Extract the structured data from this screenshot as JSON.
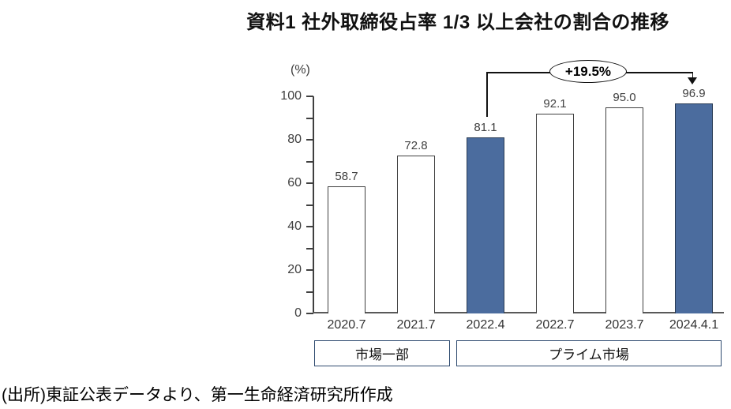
{
  "title": "資料1 社外取締役占率 1/3 以上会社の割合の推移",
  "source_note": "(出所)東証公表データより、第一生命経済研究所作成",
  "chart_data": {
    "type": "bar",
    "title": "資料1 社外取締役占率 1/3 以上会社の割合の推移",
    "unit_label": "(%)",
    "categories": [
      "2020.7",
      "2021.7",
      "2022.4",
      "2022.7",
      "2023.7",
      "2024.4.1"
    ],
    "values": [
      58.7,
      72.8,
      81.1,
      92.1,
      95.0,
      96.9
    ],
    "value_labels": [
      "58.7",
      "72.8",
      "81.1",
      "92.1",
      "95.0",
      "96.9"
    ],
    "highlighted": [
      false,
      false,
      true,
      false,
      false,
      true
    ],
    "ylim": [
      0,
      100
    ],
    "y_minor_tick_step": 10,
    "y_major_tick_labels": [
      0,
      20,
      40,
      60,
      80,
      100
    ],
    "grid": false,
    "legend": "none",
    "groups": [
      {
        "label": "市場一部",
        "from_index": 0,
        "to_index": 1
      },
      {
        "label": "プライム市場",
        "from_index": 2,
        "to_index": 5
      }
    ],
    "annotation": {
      "label": "+19.5%",
      "from_category": "2022.4",
      "to_category": "2024.4.1"
    },
    "colors": {
      "highlight_fill": "#4B6C9E",
      "highlight_outline": "#2A3C55",
      "default_fill": "#FFFFFF",
      "bar_outline": "#404040",
      "axis": "#404040",
      "baseline": "#595959",
      "group_box_border": "#2E4A6F"
    }
  }
}
